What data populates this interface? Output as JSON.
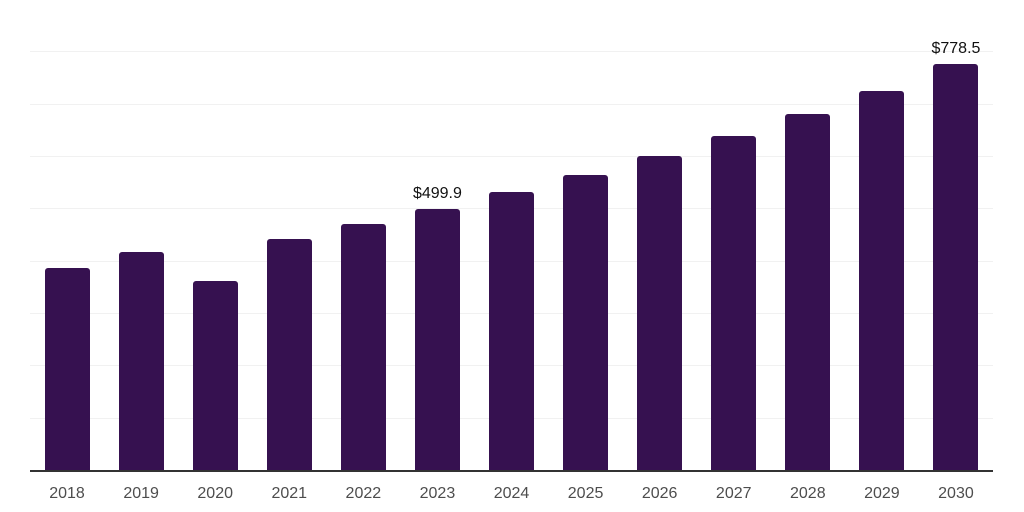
{
  "chart_data": {
    "type": "bar",
    "categories": [
      "2018",
      "2019",
      "2020",
      "2021",
      "2022",
      "2023",
      "2024",
      "2025",
      "2026",
      "2027",
      "2028",
      "2029",
      "2030"
    ],
    "values": [
      387.3,
      417.7,
      362.6,
      444.2,
      471.4,
      499.9,
      533.1,
      565.4,
      601.5,
      640.8,
      682.1,
      727.0,
      778.5
    ],
    "data_labels": [
      null,
      null,
      null,
      null,
      null,
      "$499.9",
      null,
      null,
      null,
      null,
      null,
      null,
      "$778.5"
    ],
    "title": "",
    "xlabel": "",
    "ylabel": "",
    "ylim": [
      0,
      900
    ],
    "grid_step": 100,
    "grid": true,
    "legend": false,
    "colors": {
      "bar": "#361150",
      "gridline": "#f1f1f1",
      "axis_line": "#333333",
      "tick_label": "#4d4d4d",
      "value_label": "#111111",
      "background": "#ffffff"
    }
  }
}
